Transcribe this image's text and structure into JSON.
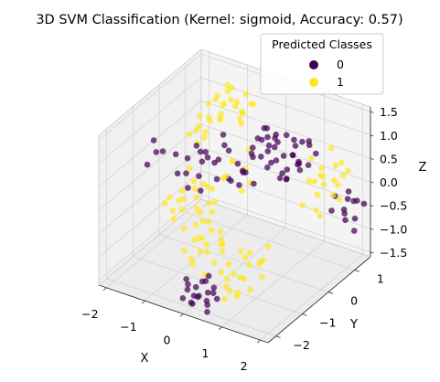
{
  "chart_data": {
    "type": "scatter",
    "title": "3D SVM Classification (Kernel: sigmoid, Accuracy: 0.57)",
    "xlabel": "X",
    "ylabel": "Y",
    "zlabel": "Z",
    "x_ticks": [
      "−2",
      "−1",
      "0",
      "1",
      "2"
    ],
    "y_ticks": [
      "−2",
      "−1",
      "0",
      "1"
    ],
    "z_ticks": [
      "−1.5",
      "−1.0",
      "−0.5",
      "0.0",
      "0.5",
      "1.0",
      "1.5"
    ],
    "xlim": [
      -2.2,
      2.2
    ],
    "ylim": [
      -2.3,
      1.6
    ],
    "zlim": [
      -1.6,
      1.6
    ],
    "grid": true,
    "legend": {
      "title": "Predicted Classes",
      "position": "top-right",
      "entries": [
        {
          "label": "0",
          "color": "#440154"
        },
        {
          "label": "1",
          "color": "#fde725"
        }
      ]
    },
    "series": [
      {
        "class": "0",
        "color": "#440154",
        "points": [
          [
            0.6,
            -0.1,
            1.5
          ],
          [
            0.6,
            0.0,
            1.45
          ],
          [
            0.55,
            0.1,
            1.2
          ],
          [
            0.5,
            -0.2,
            1.3
          ],
          [
            0.4,
            0.1,
            1.1
          ],
          [
            0.7,
            0.2,
            1.25
          ],
          [
            0.3,
            -0.1,
            1.0
          ],
          [
            0.8,
            0.0,
            1.1
          ],
          [
            0.45,
            0.3,
            0.9
          ],
          [
            0.65,
            -0.3,
            1.0
          ],
          [
            0.2,
            0.0,
            0.8
          ],
          [
            0.9,
            0.2,
            0.85
          ],
          [
            0.35,
            0.4,
            0.7
          ],
          [
            0.75,
            -0.2,
            0.75
          ],
          [
            0.1,
            0.2,
            0.6
          ],
          [
            1.0,
            0.0,
            0.6
          ],
          [
            0.5,
            0.5,
            0.5
          ],
          [
            0.6,
            -0.5,
            0.5
          ],
          [
            0.25,
            -0.3,
            0.55
          ],
          [
            0.85,
            0.4,
            0.45
          ],
          [
            1.1,
            0.3,
            1.2
          ],
          [
            1.2,
            0.1,
            1.0
          ],
          [
            1.0,
            0.5,
            0.95
          ],
          [
            0.95,
            -0.1,
            1.3
          ],
          [
            1.3,
            0.2,
            0.8
          ],
          [
            1.15,
            0.4,
            0.7
          ],
          [
            1.4,
            0.0,
            0.9
          ],
          [
            0.7,
            0.6,
            1.05
          ],
          [
            1.25,
            -0.2,
            0.65
          ],
          [
            0.4,
            0.6,
            0.9
          ],
          [
            1.5,
            0.3,
            1.2
          ],
          [
            1.45,
            0.1,
            1.35
          ],
          [
            1.6,
            0.4,
            1.0
          ],
          [
            1.35,
            0.5,
            1.15
          ],
          [
            0.05,
            -0.1,
            0.4
          ],
          [
            -0.1,
            0.1,
            0.3
          ],
          [
            0.15,
            -0.4,
            0.3
          ],
          [
            -0.2,
            -0.2,
            0.2
          ],
          [
            0.3,
            0.6,
            0.35
          ],
          [
            0.8,
            0.7,
            0.6
          ],
          [
            0.1,
            -2.1,
            -1.45
          ],
          [
            0.2,
            -2.0,
            -1.3
          ],
          [
            0.0,
            -1.9,
            -1.4
          ],
          [
            0.3,
            -2.2,
            -1.2
          ],
          [
            0.15,
            -1.8,
            -1.1
          ],
          [
            -0.1,
            -2.0,
            -1.25
          ],
          [
            0.4,
            -2.0,
            -1.35
          ],
          [
            0.25,
            -1.7,
            -1.0
          ],
          [
            0.05,
            -2.2,
            -1.0
          ],
          [
            0.35,
            -1.9,
            -1.5
          ],
          [
            -0.05,
            -1.75,
            -1.3
          ],
          [
            0.45,
            -1.8,
            -1.15
          ],
          [
            0.2,
            -2.3,
            -1.3
          ],
          [
            0.5,
            -2.1,
            -1.1
          ],
          [
            -0.2,
            -1.9,
            -1.1
          ],
          [
            0.6,
            -1.9,
            -1.3
          ],
          [
            0.3,
            -1.6,
            -1.4
          ],
          [
            0.1,
            -1.6,
            -1.2
          ],
          [
            0.55,
            -2.2,
            -1.45
          ],
          [
            -0.15,
            -2.1,
            -1.4
          ],
          [
            -1.2,
            0.3,
            0.3
          ],
          [
            -1.0,
            0.5,
            0.1
          ],
          [
            -1.3,
            0.1,
            0.5
          ],
          [
            -0.9,
            0.2,
            0.2
          ],
          [
            -1.1,
            -0.1,
            0.0
          ],
          [
            -1.4,
            0.4,
            0.2
          ],
          [
            -0.8,
            0.6,
            0.3
          ],
          [
            -1.5,
            0.0,
            -0.1
          ],
          [
            -1.6,
            0.2,
            0.1
          ],
          [
            -0.7,
            0.0,
            0.0
          ],
          [
            -1.25,
            -0.3,
            -0.2
          ],
          [
            -0.95,
            -0.2,
            0.4
          ],
          [
            -1.35,
            0.6,
            0.0
          ],
          [
            -0.6,
            0.3,
            -0.1
          ],
          [
            -1.7,
            -0.1,
            0.3
          ],
          [
            -1.05,
            0.8,
            0.25
          ],
          [
            -0.5,
            0.5,
            0.15
          ],
          [
            -1.45,
            -0.4,
            0.1
          ],
          [
            -0.85,
            -0.4,
            -0.1
          ],
          [
            -1.15,
            0.9,
            0.4
          ],
          [
            1.9,
            1.4,
            -0.4
          ],
          [
            1.8,
            1.2,
            -0.6
          ],
          [
            1.7,
            1.5,
            -0.3
          ],
          [
            2.0,
            1.3,
            -0.7
          ],
          [
            1.6,
            1.0,
            -0.5
          ],
          [
            1.95,
            1.1,
            -0.2
          ],
          [
            1.75,
            1.3,
            -0.8
          ],
          [
            1.85,
            1.6,
            -0.5
          ],
          [
            2.1,
            1.5,
            -0.45
          ],
          [
            1.65,
            1.4,
            -0.65
          ],
          [
            1.55,
            1.2,
            -0.3
          ],
          [
            2.05,
            1.2,
            -0.9
          ],
          [
            -2.0,
            -0.5,
            0.7
          ],
          [
            -1.9,
            -0.3,
            0.4
          ],
          [
            -2.1,
            -0.6,
            0.2
          ],
          [
            -1.8,
            -0.7,
            0.6
          ],
          [
            0.9,
            0.3,
            0.3
          ],
          [
            1.05,
            0.6,
            0.4
          ],
          [
            0.6,
            0.5,
            0.15
          ],
          [
            1.2,
            0.7,
            0.5
          ]
        ]
      },
      {
        "class": "1",
        "color": "#fde725",
        "points": [
          [
            -1.2,
            1.3,
            1.2
          ],
          [
            -1.0,
            1.2,
            1.0
          ],
          [
            -1.3,
            1.1,
            0.9
          ],
          [
            -0.9,
            1.4,
            1.1
          ],
          [
            -1.1,
            1.0,
            1.3
          ],
          [
            -1.4,
            1.3,
            0.8
          ],
          [
            -0.8,
            1.1,
            0.9
          ],
          [
            -1.5,
            1.2,
            1.0
          ],
          [
            -1.25,
            1.5,
            0.7
          ],
          [
            -0.95,
            0.9,
            1.2
          ],
          [
            -1.6,
            1.0,
            0.6
          ],
          [
            -0.7,
            1.3,
            1.0
          ],
          [
            -1.35,
            0.9,
            1.1
          ],
          [
            -1.05,
            1.5,
            0.6
          ],
          [
            -1.15,
            0.8,
            0.8
          ],
          [
            -1.45,
            1.5,
            1.1
          ],
          [
            -0.85,
            1.6,
            0.8
          ],
          [
            -1.55,
            1.4,
            0.5
          ],
          [
            -0.75,
            1.0,
            0.7
          ],
          [
            -1.2,
            1.6,
            0.4
          ],
          [
            -1.7,
            1.2,
            0.4
          ],
          [
            -1.8,
            1.3,
            0.7
          ],
          [
            -1.65,
            1.5,
            0.3
          ],
          [
            -1.9,
            1.1,
            0.5
          ],
          [
            -2.0,
            1.2,
            0.2
          ],
          [
            -1.85,
            0.9,
            0.3
          ],
          [
            -1.95,
            1.4,
            0.0
          ],
          [
            -2.1,
            1.0,
            0.1
          ],
          [
            -1.75,
            0.8,
            0.1
          ],
          [
            -2.05,
            1.5,
            -0.2
          ],
          [
            -1.5,
            0.3,
            -0.4
          ],
          [
            -1.3,
            0.1,
            -0.6
          ],
          [
            -1.6,
            0.0,
            -0.5
          ],
          [
            -1.2,
            -0.1,
            -0.3
          ],
          [
            -1.4,
            -0.3,
            -0.7
          ],
          [
            -1.7,
            0.2,
            -0.8
          ],
          [
            -1.1,
            0.4,
            -0.5
          ],
          [
            -1.8,
            -0.2,
            -0.6
          ],
          [
            -1.35,
            -0.5,
            -0.4
          ],
          [
            -1.55,
            -0.4,
            -0.9
          ],
          [
            -1.0,
            -0.2,
            -0.7
          ],
          [
            -1.65,
            -0.6,
            -0.5
          ],
          [
            -1.25,
            0.5,
            -0.9
          ],
          [
            -0.9,
            0.1,
            -0.8
          ],
          [
            -1.45,
            0.6,
            -0.6
          ],
          [
            -1.75,
            0.5,
            -0.3
          ],
          [
            -1.15,
            -0.6,
            -0.9
          ],
          [
            -0.95,
            -0.4,
            -0.5
          ],
          [
            -1.85,
            0.0,
            -1.0
          ],
          [
            -1.05,
            0.2,
            -1.1
          ],
          [
            -0.3,
            -0.8,
            -0.6
          ],
          [
            -0.1,
            -0.7,
            -0.8
          ],
          [
            -0.4,
            -1.0,
            -0.7
          ],
          [
            0.0,
            -0.9,
            -0.5
          ],
          [
            -0.2,
            -1.1,
            -0.9
          ],
          [
            -0.5,
            -0.7,
            -1.0
          ],
          [
            0.1,
            -1.0,
            -0.7
          ],
          [
            -0.35,
            -1.2,
            -0.6
          ],
          [
            -0.15,
            -0.6,
            -1.1
          ],
          [
            -0.45,
            -0.9,
            -0.4
          ],
          [
            0.05,
            -1.2,
            -1.0
          ],
          [
            -0.25,
            -1.3,
            -0.8
          ],
          [
            -0.6,
            -1.0,
            -0.8
          ],
          [
            -0.55,
            -1.2,
            -1.1
          ],
          [
            0.15,
            -0.8,
            -1.2
          ],
          [
            -0.05,
            -1.4,
            -1.2
          ],
          [
            -0.7,
            -0.8,
            -0.6
          ],
          [
            -0.65,
            -1.3,
            -0.9
          ],
          [
            0.2,
            -1.1,
            -0.6
          ],
          [
            -0.3,
            -1.5,
            -1.0
          ],
          [
            1.2,
            1.2,
            0.2
          ],
          [
            1.4,
            1.0,
            0.0
          ],
          [
            1.1,
            1.4,
            -0.1
          ],
          [
            1.5,
            1.3,
            0.3
          ],
          [
            1.3,
            0.9,
            -0.2
          ],
          [
            1.6,
            1.1,
            0.1
          ],
          [
            1.0,
            1.1,
            0.4
          ],
          [
            1.7,
            0.9,
            -0.1
          ],
          [
            1.25,
            1.5,
            0.5
          ],
          [
            1.45,
            0.8,
            0.3
          ],
          [
            1.55,
            1.5,
            0.0
          ],
          [
            1.15,
            0.8,
            0.1
          ],
          [
            1.35,
            1.6,
            -0.3
          ],
          [
            1.65,
            1.3,
            0.4
          ],
          [
            0.95,
            1.3,
            -0.2
          ],
          [
            1.75,
            1.4,
            0.2
          ],
          [
            1.05,
            0.7,
            -0.4
          ],
          [
            1.5,
            0.7,
            -0.5
          ],
          [
            1.2,
            1.0,
            -0.6
          ],
          [
            1.8,
            1.0,
            -0.2
          ],
          [
            0.5,
            -0.5,
            -1.0
          ],
          [
            0.7,
            -0.3,
            -1.2
          ],
          [
            0.4,
            -0.7,
            -0.9
          ],
          [
            0.8,
            -0.6,
            -1.1
          ],
          [
            0.6,
            -0.2,
            -1.3
          ],
          [
            0.3,
            -0.4,
            -1.2
          ],
          [
            0.9,
            -0.4,
            -0.8
          ],
          [
            0.55,
            -0.8,
            -1.4
          ],
          [
            0.75,
            -0.9,
            -1.0
          ],
          [
            0.35,
            -0.9,
            -1.3
          ],
          [
            0.65,
            -1.1,
            -1.2
          ],
          [
            0.45,
            -1.2,
            -1.5
          ],
          [
            0.85,
            -1.0,
            -1.45
          ],
          [
            0.25,
            -1.0,
            -1.4
          ],
          [
            0.95,
            -0.7,
            -1.3
          ],
          [
            0.5,
            -1.4,
            -1.3
          ],
          [
            0.7,
            -1.3,
            -1.5
          ],
          [
            0.3,
            -1.3,
            -1.1
          ],
          [
            0.8,
            -1.4,
            -1.35
          ],
          [
            0.6,
            -1.6,
            -1.45
          ],
          [
            -0.5,
            0.3,
            0.3
          ],
          [
            -0.3,
            0.5,
            0.1
          ],
          [
            -0.6,
            0.1,
            0.0
          ],
          [
            -0.2,
            0.2,
            -0.2
          ],
          [
            -0.4,
            -0.1,
            0.2
          ],
          [
            -0.7,
            0.6,
            0.1
          ],
          [
            -0.1,
            0.4,
            -0.1
          ],
          [
            -0.8,
            -0.2,
            -0.1
          ],
          [
            -0.35,
            0.7,
            0.4
          ],
          [
            -0.55,
            -0.3,
            -0.3
          ]
        ]
      }
    ]
  }
}
